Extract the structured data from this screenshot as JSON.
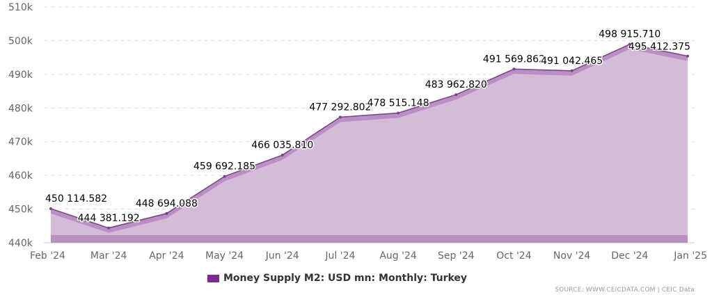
{
  "chart_data": {
    "type": "area",
    "categories": [
      "Feb '24",
      "Mar '24",
      "Apr '24",
      "May '24",
      "Jun '24",
      "Jul '24",
      "Aug '24",
      "Sep '24",
      "Oct '24",
      "Nov '24",
      "Dec '24",
      "Jan '25"
    ],
    "series": [
      {
        "name": "Money Supply M2: USD mn: Monthly: Turkey",
        "values": [
          450114.582,
          444381.192,
          448694.088,
          459692.185,
          466035.81,
          477292.802,
          478515.148,
          483962.82,
          491569.862,
          491042.465,
          498915.71,
          495412.375
        ]
      }
    ],
    "data_labels": [
      "450 114.582",
      "444 381.192",
      "448 694.088",
      "459 692.185",
      "466 035.810",
      "477 292.802",
      "478 515.148",
      "483 962.820",
      "491 569.862",
      "491 042.465",
      "498 915.710",
      "495 412.375"
    ],
    "y_ticks": [
      {
        "value": 440000,
        "label": "440k"
      },
      {
        "value": 450000,
        "label": "450k"
      },
      {
        "value": 460000,
        "label": "460k"
      },
      {
        "value": 470000,
        "label": "470k"
      },
      {
        "value": 480000,
        "label": "480k"
      },
      {
        "value": 490000,
        "label": "490k"
      },
      {
        "value": 500000,
        "label": "500k"
      },
      {
        "value": 510000,
        "label": "510k"
      }
    ],
    "ylim": [
      440000,
      510000
    ],
    "grid": true,
    "legend_position": "bottom-center",
    "colors": {
      "line": "#7b3f8c",
      "area": "#d4bcd9",
      "area_band": "#b98fc4",
      "legend": "#7b2a8e",
      "grid": "#e0e0e0"
    }
  },
  "legend": {
    "label": "Money Supply M2: USD mn: Monthly: Turkey"
  },
  "source": "SOURCE: WWW.CEICDATA.COM | CEIC Data"
}
